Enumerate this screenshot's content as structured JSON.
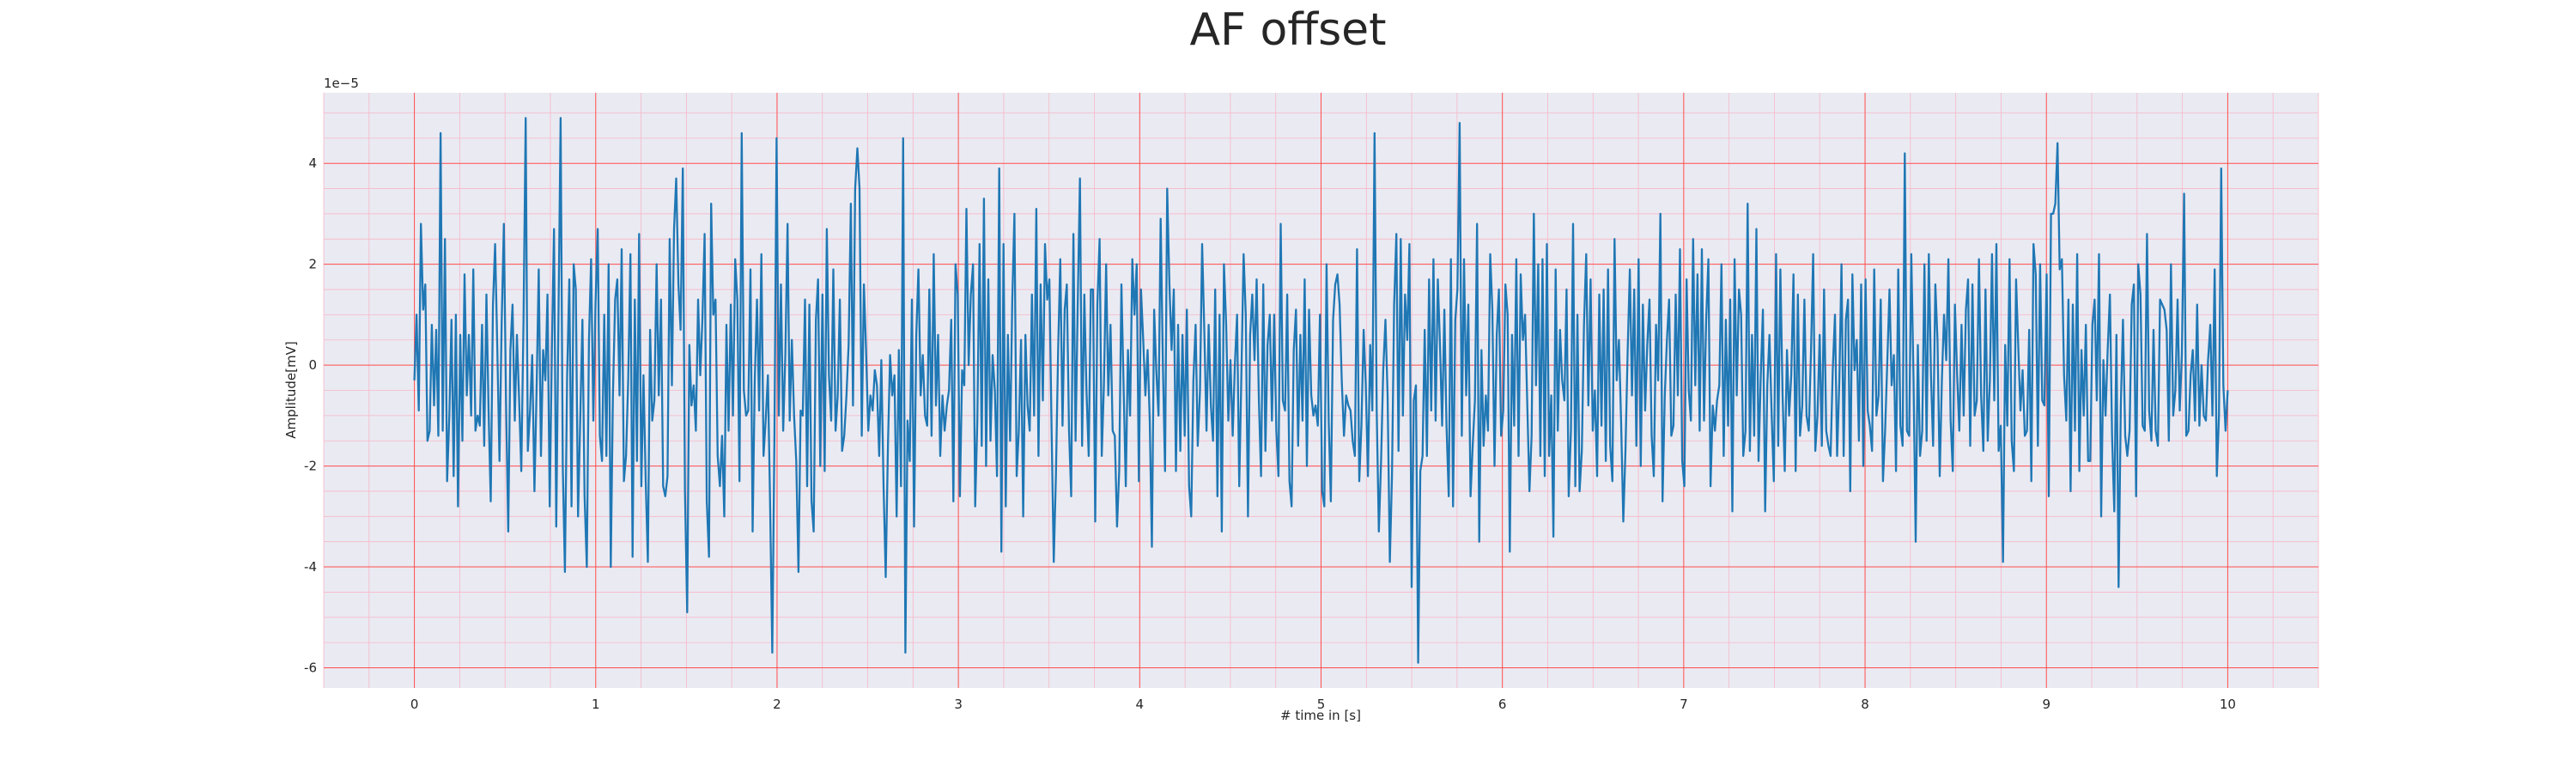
{
  "chart_data": {
    "type": "line",
    "title": "AF offset",
    "xlabel": "# time in [s]",
    "ylabel": "Amplitude[mV]",
    "y_offset_text": "1e−5",
    "xlim": [
      -0.5,
      10.5
    ],
    "ylim": [
      -6.4,
      5.4
    ],
    "x_ticks": [
      0,
      1,
      2,
      3,
      4,
      5,
      6,
      7,
      8,
      9,
      10
    ],
    "x_tick_labels": [
      "0",
      "1",
      "2",
      "3",
      "4",
      "5",
      "6",
      "7",
      "8",
      "9",
      "10"
    ],
    "y_ticks": [
      -6,
      -4,
      -2,
      0,
      2,
      4
    ],
    "y_tick_labels": [
      "-6",
      "-4",
      "-2",
      "0",
      "2",
      "4"
    ],
    "grid": true,
    "minor_grid": true,
    "colors": {
      "plot_background": "#eaeaf2",
      "major_grid": "#ff4d4d",
      "minor_grid": "#f7b7c7",
      "line": "#1f77b4"
    },
    "series": [
      {
        "x_start": 0,
        "x_end": 10,
        "values": [
          -0.3,
          1.0,
          -0.9,
          2.8,
          1.1,
          1.6,
          -1.5,
          -1.3,
          0.8,
          -0.8,
          0.7,
          -1.4,
          4.6,
          -1.3,
          2.5,
          -2.3,
          -1.0,
          0.9,
          -2.2,
          1.0,
          -2.8,
          0.6,
          -1.5,
          1.8,
          -0.6,
          0.6,
          -1.0,
          1.9,
          -1.3,
          -1.0,
          -1.2,
          0.8,
          -1.6,
          1.4,
          -0.9,
          -2.7,
          1.2,
          2.4,
          0.3,
          -1.9,
          0.8,
          2.8,
          -0.7,
          -3.3,
          0.3,
          1.2,
          -1.1,
          0.6,
          -0.7,
          -2.1,
          0.9,
          4.9,
          -1.7,
          -0.9,
          0.2,
          -2.5,
          -0.5,
          1.9,
          -1.8,
          0.3,
          -0.3,
          1.4,
          -2.8,
          0.3,
          2.7,
          -3.2,
          0.8,
          4.9,
          -2.0,
          -4.1,
          -0.2,
          1.7,
          -2.8,
          2.0,
          1.5,
          -3.0,
          -1.1,
          0.9,
          -2.6,
          -4.0,
          0.5,
          2.1,
          -1.1,
          1.2,
          2.7,
          -1.4,
          -1.9,
          1.0,
          -1.8,
          2.0,
          -4.0,
          -0.6,
          1.3,
          1.7,
          -0.6,
          2.3,
          -2.3,
          -1.8,
          -0.3,
          2.2,
          -3.8,
          1.3,
          -1.9,
          2.6,
          -2.4,
          -0.2,
          -2.3,
          -3.9,
          0.7,
          -1.1,
          -0.7,
          2.0,
          -0.6,
          1.3,
          -2.4,
          -2.6,
          -2.2,
          2.5,
          -0.4,
          2.7,
          3.7,
          1.6,
          0.7,
          3.9,
          -2.5,
          -4.9,
          0.4,
          -0.8,
          -0.4,
          -1.3,
          1.3,
          -0.2,
          0.9,
          2.6,
          -2.7,
          -3.8,
          3.2,
          1.0,
          1.3,
          -1.8,
          -2.4,
          -1.4,
          -3.0,
          0.8,
          -1.3,
          1.2,
          -1.0,
          2.1,
          1.3,
          -2.3,
          4.6,
          -0.5,
          -1.0,
          -0.9,
          1.9,
          -3.3,
          -0.3,
          1.3,
          -0.9,
          2.2,
          -1.8,
          -1.1,
          -0.2,
          -2.7,
          -5.7,
          -1.4,
          4.5,
          -1.0,
          1.6,
          -1.3,
          0.2,
          2.8,
          -1.1,
          0.5,
          -1.0,
          -1.9,
          -4.1,
          -0.9,
          -1.0,
          1.3,
          -2.4,
          1.2,
          -2.7,
          -3.3,
          0.9,
          1.7,
          -2.0,
          1.4,
          -2.1,
          2.7,
          -0.2,
          -1.1,
          1.9,
          -1.3,
          -0.6,
          1.3,
          -1.7,
          -1.4,
          -0.6,
          0.4,
          3.2,
          -0.8,
          3.5,
          4.3,
          3.5,
          -1.4,
          1.6,
          0.3,
          -1.3,
          -0.6,
          -0.9,
          -0.1,
          -0.4,
          -1.8,
          0.1,
          -2.4,
          -4.2,
          -1.6,
          0.2,
          -0.6,
          -0.2,
          -3.0,
          0.3,
          -2.4,
          4.5,
          -5.7,
          -1.1,
          -1.9,
          1.3,
          -3.2,
          0.6,
          1.9,
          -0.6,
          0.2,
          -1.0,
          -1.2,
          1.5,
          -1.4,
          2.2,
          -0.8,
          0.6,
          -1.8,
          -0.6,
          -1.3,
          -0.8,
          -0.5,
          0.9,
          -2.7,
          2.0,
          1.4,
          -2.6,
          -0.1,
          -0.4,
          3.1,
          0.0,
          1.4,
          2.0,
          -2.8,
          -1.1,
          2.4,
          -1.6,
          3.3,
          -2.0,
          1.7,
          -1.5,
          0.2,
          -0.5,
          -2.2,
          3.9,
          -3.7,
          2.4,
          -2.8,
          0.6,
          -1.5,
          1.3,
          3.0,
          -2.2,
          -1.3,
          0.5,
          -3.0,
          0.6,
          -0.8,
          -1.3,
          1.4,
          -1.0,
          3.1,
          -1.8,
          1.6,
          -0.7,
          2.4,
          1.3,
          1.7,
          -1.2,
          -3.9,
          -2.2,
          0.3,
          2.1,
          -1.2,
          1.1,
          1.6,
          -1.3,
          -2.6,
          2.6,
          -1.5,
          1.2,
          3.7,
          -1.6,
          1.4,
          -0.5,
          -1.8,
          1.5,
          1.5,
          -3.1,
          1.2,
          2.5,
          -1.8,
          -0.4,
          2.0,
          -0.6,
          0.8,
          -1.3,
          -1.4,
          -3.2,
          -2.1,
          1.6,
          -0.4,
          -2.4,
          0.3,
          -1.0,
          2.1,
          1.0,
          2.0,
          -2.3,
          1.5,
          0.5,
          -0.6,
          0.3,
          -1.1,
          -3.6,
          1.1,
          -0.1,
          -1.0,
          2.9,
          0.0,
          -2.1,
          3.5,
          1.6,
          0.3,
          1.5,
          -2.1,
          0.8,
          -1.7,
          0.6,
          -1.4,
          1.1,
          -2.4,
          -3.0,
          -0.3,
          0.8,
          -1.6,
          -0.5,
          2.4,
          0.7,
          -1.3,
          0.8,
          -0.8,
          -1.5,
          1.5,
          -2.6,
          1.0,
          -3.3,
          2.0,
          0.8,
          -1.1,
          0.1,
          -1.4,
          0.0,
          1.0,
          -2.4,
          -0.2,
          2.2,
          1.0,
          -3.0,
          0.6,
          1.4,
          0.1,
          1.7,
          -0.7,
          -2.2,
          1.6,
          -1.7,
          0.4,
          1.0,
          -1.1,
          1.0,
          -1.3,
          -2.2,
          2.8,
          -0.7,
          -0.9,
          1.4,
          -2.3,
          -2.8,
          0.3,
          1.1,
          -1.6,
          0.6,
          -1.1,
          1.7,
          -2.0,
          1.1,
          -0.6,
          -1.0,
          -0.8,
          -1.2,
          1.0,
          -2.5,
          -2.8,
          2.0,
          -1.1,
          -2.7,
          0.9,
          1.6,
          1.8,
          1.2,
          -0.3,
          -1.4,
          -0.6,
          -0.8,
          -0.9,
          -1.5,
          -1.8,
          2.3,
          -2.3,
          -1.2,
          0.7,
          -0.4,
          -2.2,
          0.4,
          -0.9,
          4.6,
          -0.9,
          -3.3,
          -1.9,
          -0.1,
          0.9,
          -0.6,
          -3.9,
          -2.2,
          1.2,
          2.6,
          -1.7,
          2.5,
          -1.0,
          1.4,
          0.5,
          2.4,
          -4.4,
          -0.7,
          -0.4,
          -5.9,
          -2.1,
          -1.8,
          0.7,
          -1.8,
          1.7,
          -0.9,
          2.1,
          -1.1,
          1.7,
          0.4,
          -1.2,
          1.1,
          -1.2,
          -2.6,
          2.1,
          -2.8,
          0.9,
          1.5,
          4.8,
          -1.4,
          2.1,
          -0.6,
          1.2,
          -2.6,
          -1.6,
          -0.7,
          2.8,
          -3.5,
          0.3,
          -1.6,
          -0.6,
          -1.3,
          2.2,
          1.1,
          -2.0,
          0.6,
          1.5,
          -1.4,
          -0.9,
          1.6,
          1.0,
          -3.7,
          0.6,
          -1.2,
          2.1,
          -1.8,
          1.8,
          0.5,
          1.0,
          -0.8,
          -2.5,
          -1.4,
          3.0,
          -0.4,
          2.0,
          -1.8,
          2.1,
          -2.2,
          2.4,
          -1.8,
          -0.6,
          -3.4,
          1.9,
          -1.3,
          0.7,
          -0.3,
          -0.7,
          1.5,
          -2.6,
          -1.3,
          2.8,
          -2.4,
          1.0,
          -2.5,
          -1.7,
          0.8,
          2.2,
          -0.8,
          1.7,
          -1.3,
          -0.5,
          -2.2,
          1.4,
          -1.2,
          1.5,
          -1.9,
          1.9,
          -1.6,
          -2.3,
          2.5,
          -0.3,
          0.5,
          -1.1,
          -3.1,
          -1.7,
          0.3,
          1.9,
          -0.6,
          1.5,
          -1.6,
          2.1,
          -2.0,
          1.2,
          -0.9,
          0.4,
          1.3,
          -1.4,
          -2.2,
          0.8,
          -0.3,
          3.0,
          -2.7,
          -0.6,
          0.5,
          1.3,
          -1.4,
          -1.2,
          1.4,
          -0.6,
          2.3,
          -1.9,
          -2.4,
          1.7,
          -0.5,
          -1.1,
          2.5,
          -0.4,
          1.8,
          -1.3,
          2.3,
          -1.1,
          0.9,
          2.1,
          -2.4,
          -0.8,
          -1.3,
          -0.7,
          -0.4,
          2.0,
          -1.8,
          0.9,
          -1.2,
          1.3,
          -2.9,
          2.1,
          -0.6,
          1.5,
          1.0,
          -1.8,
          -1.3,
          3.2,
          -1.7,
          0.6,
          -1.4,
          2.7,
          -1.9,
          -0.2,
          1.1,
          -2.9,
          -0.4,
          0.6,
          -1.0,
          -2.3,
          2.2,
          -1.6,
          1.9,
          -0.6,
          -2.1,
          0.3,
          -1.0,
          -0.2,
          1.8,
          -2.1,
          1.4,
          -1.4,
          -0.8,
          1.3,
          -1.0,
          -1.3,
          0.2,
          2.2,
          -1.7,
          -1.0,
          0.6,
          -1.6,
          1.5,
          -1.3,
          -1.6,
          -1.8,
          -0.1,
          1.0,
          -1.8,
          -0.3,
          2.0,
          -1.8,
          0.9,
          1.3,
          -2.5,
          1.8,
          -0.1,
          0.5,
          -1.5,
          1.6,
          -2.0,
          1.7,
          -0.9,
          -1.2,
          -1.7,
          1.9,
          -1.0,
          -0.6,
          1.3,
          -2.3,
          -1.3,
          0.1,
          1.5,
          -0.4,
          0.2,
          -2.1,
          1.9,
          -1.2,
          -1.6,
          4.2,
          -1.3,
          -1.4,
          2.2,
          -0.3,
          -3.5,
          0.4,
          -1.8,
          -1.3,
          2.0,
          -1.5,
          2.2,
          -0.2,
          -1.6,
          1.6,
          0.5,
          -2.2,
          -0.3,
          1.0,
          0.1,
          2.1,
          -1.1,
          -2.1,
          1.2,
          -0.2,
          -1.3,
          0.8,
          -1.0,
          1.1,
          1.7,
          -1.6,
          1.6,
          -1.0,
          -0.7,
          2.1,
          -0.6,
          -1.7,
          1.5,
          -1.5,
          -0.3,
          2.2,
          -0.7,
          2.4,
          -1.7,
          -1.2,
          -3.9,
          0.4,
          -1.2,
          2.1,
          -1.5,
          -2.1,
          1.7,
          0.4,
          -0.9,
          -0.1,
          -1.4,
          -1.3,
          0.7,
          -2.3,
          2.4,
          1.8,
          -1.6,
          2.0,
          -0.7,
          -0.8,
          1.8,
          -2.6,
          3.0,
          3.0,
          3.2,
          4.4,
          1.9,
          2.1,
          -0.2,
          -1.1,
          1.3,
          -2.5,
          1.2,
          -1.3,
          2.2,
          -2.1,
          0.3,
          -1.0,
          0.8,
          -1.9,
          -1.9,
          0.8,
          1.3,
          -0.7,
          2.2,
          -3.0,
          0.1,
          -1.0,
          0.3,
          1.4,
          -1.4,
          -2.9,
          0.6,
          -4.4,
          -0.8,
          0.9,
          -1.4,
          -1.8,
          -1.3,
          1.2,
          1.6,
          -2.6,
          2.0,
          1.4,
          -1.2,
          -1.3,
          2.6,
          -0.9,
          -1.5,
          0.7,
          -1.3,
          -1.6,
          1.3,
          1.2,
          1.1,
          0.7,
          -1.5,
          2.0,
          -1.0,
          -0.5,
          1.3,
          -0.9,
          0.2,
          3.4,
          -1.4,
          -1.3,
          -0.2,
          0.3,
          -1.1,
          1.2,
          -1.2,
          0.0,
          -1.0,
          -1.1,
          0.1,
          0.8,
          -1.0,
          1.9,
          -2.2,
          -1.0,
          3.9,
          -0.4,
          -1.3,
          -0.5
        ]
      }
    ]
  }
}
